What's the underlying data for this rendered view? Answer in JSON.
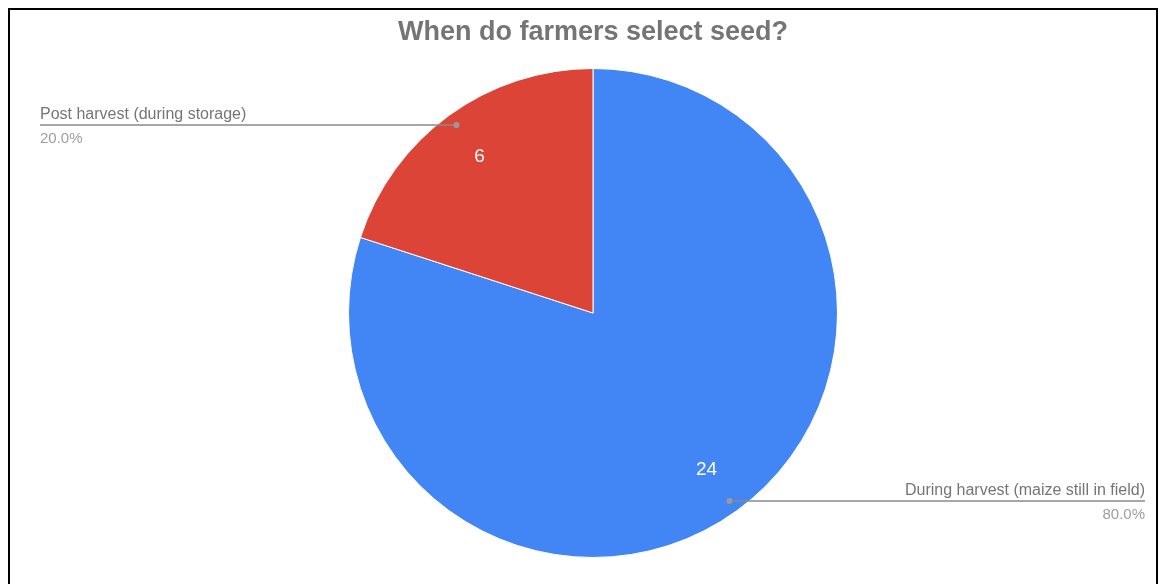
{
  "chart_data": {
    "type": "pie",
    "title": "When do farmers select seed?",
    "categories": [
      "During harvest (maize still in field)",
      "Post harvest (during storage)"
    ],
    "values": [
      24,
      6
    ],
    "colors": [
      "#4285f4",
      "#db4437"
    ],
    "data_labels": true,
    "annotations": [
      "80.0%",
      "20.0%"
    ]
  }
}
